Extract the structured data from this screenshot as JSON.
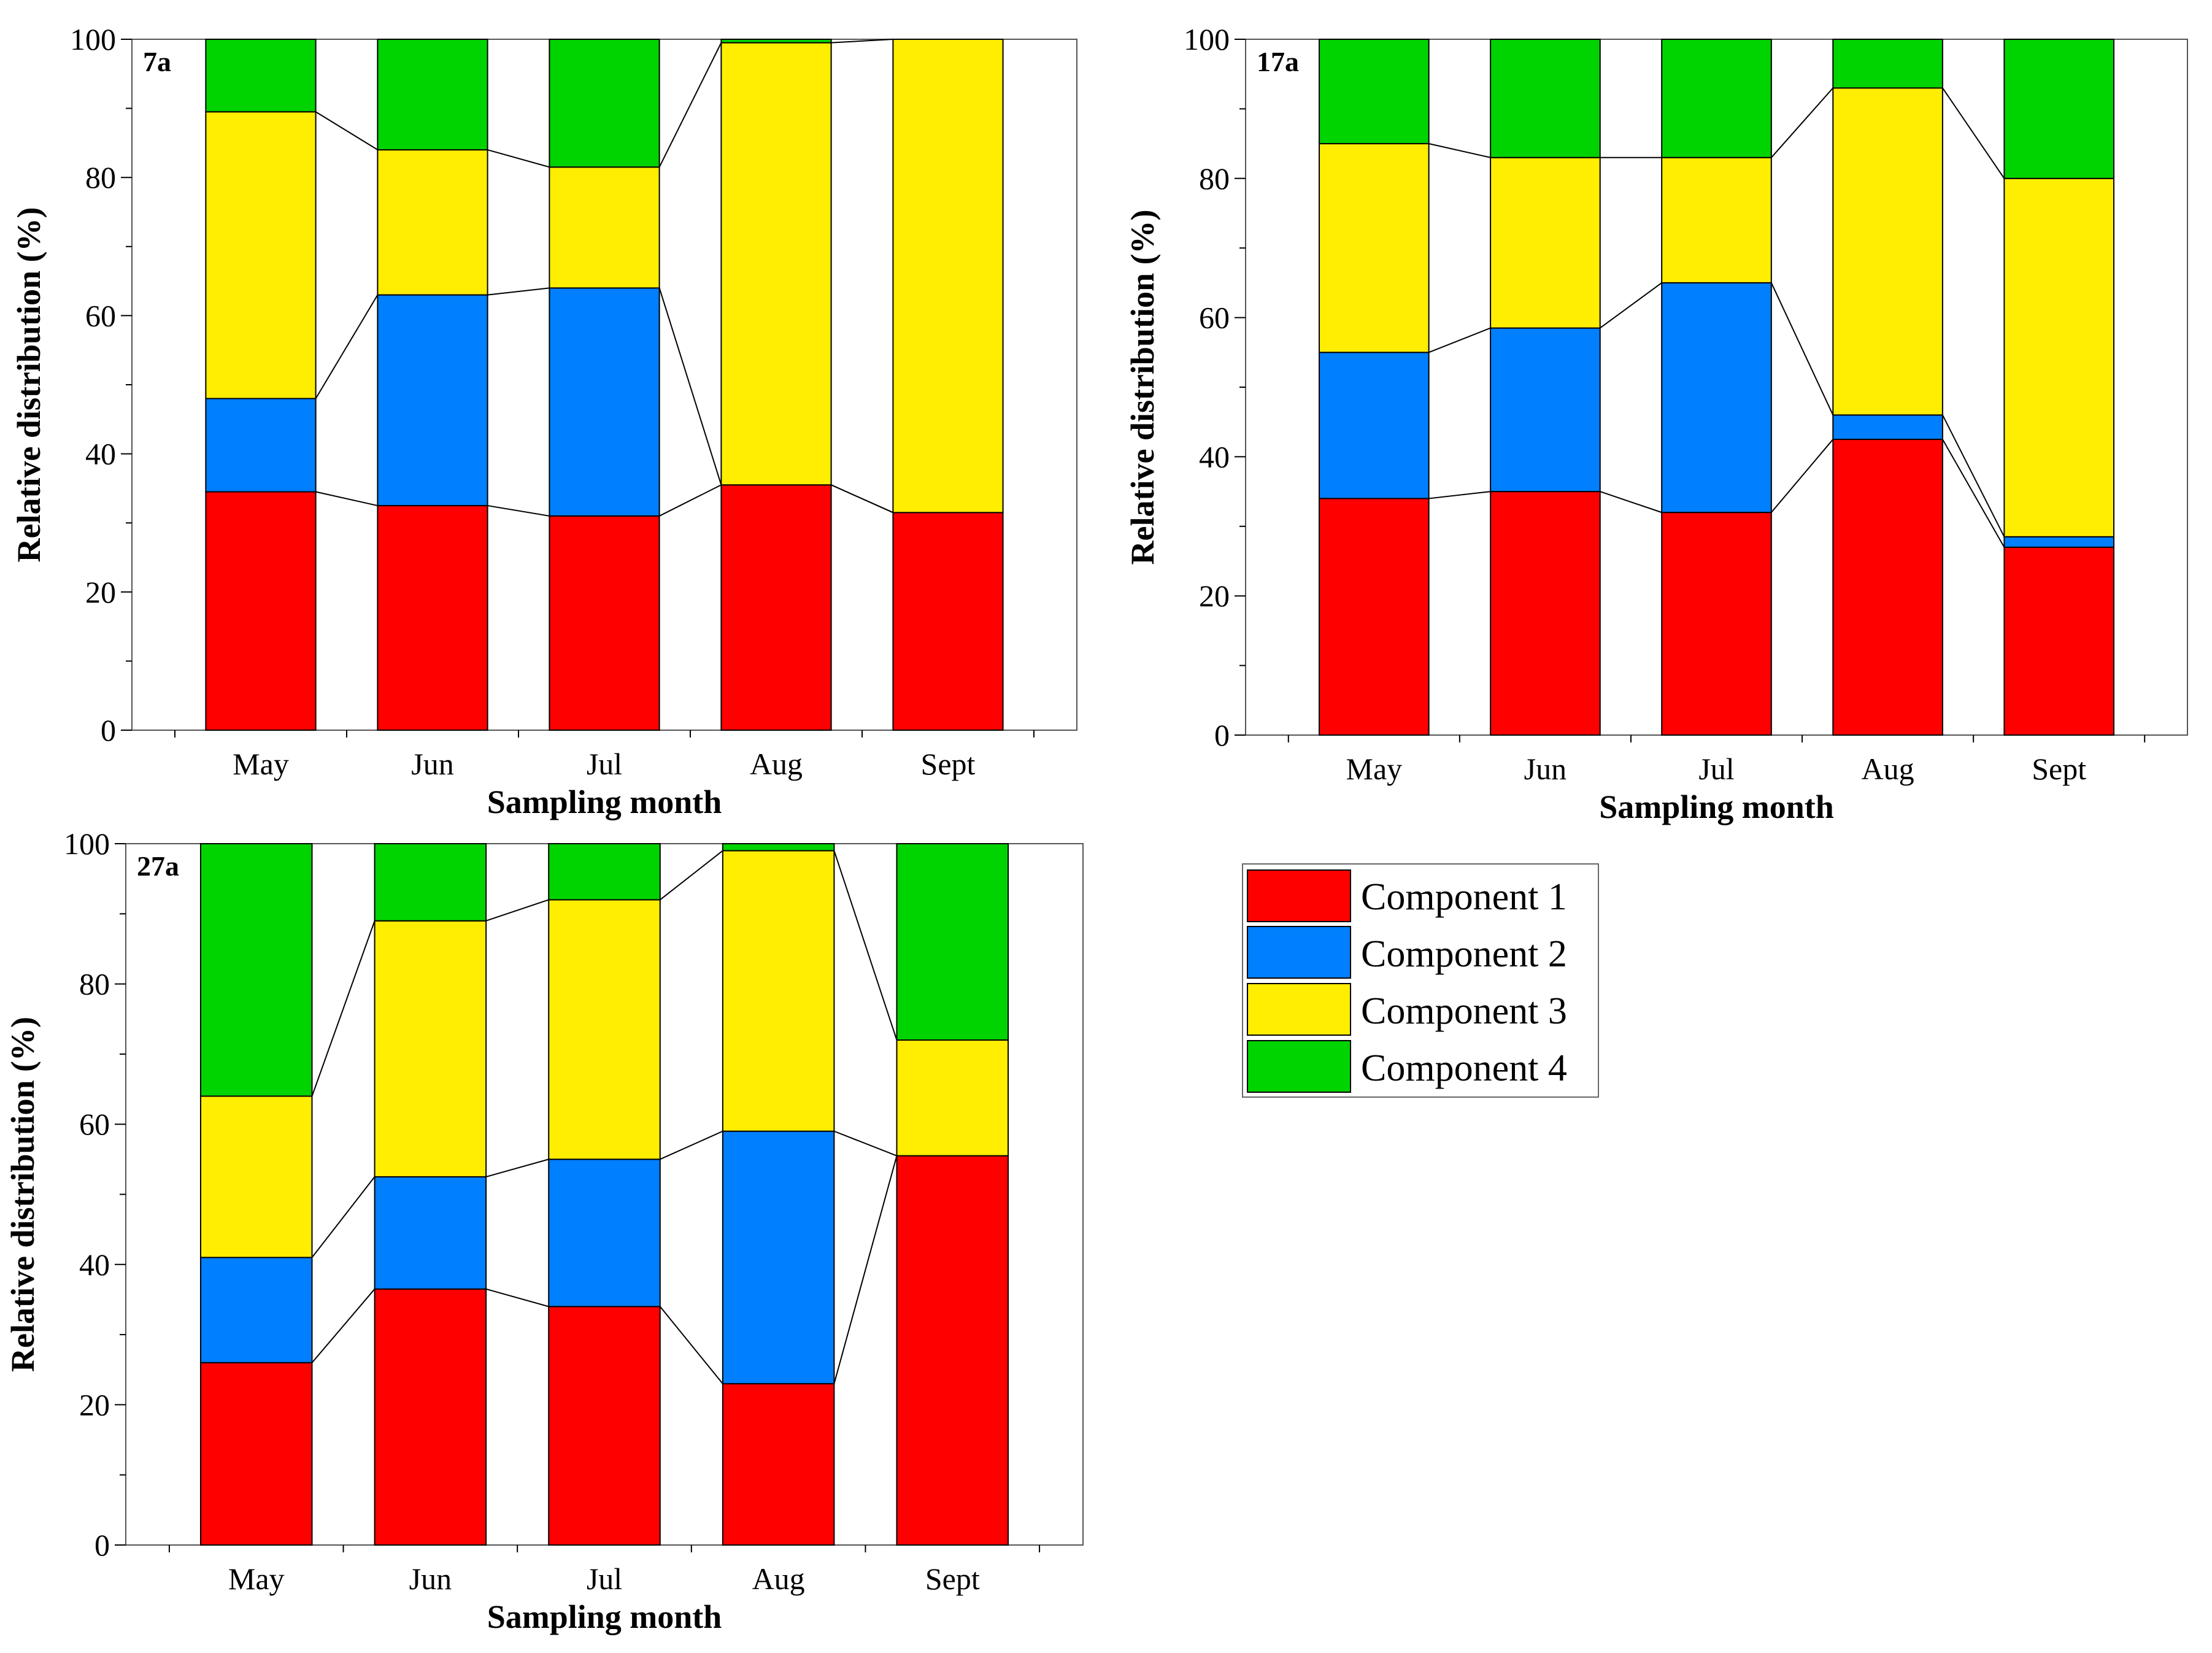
{
  "chart_data": [
    {
      "type": "bar",
      "stacked": true,
      "panel_label": "7a",
      "categories": [
        "May",
        "Jun",
        "Jul",
        "Aug",
        "Sept"
      ],
      "series": [
        {
          "name": "Component 1",
          "values": [
            34.5,
            32.5,
            31.0,
            35.5,
            31.5
          ]
        },
        {
          "name": "Component 2",
          "values": [
            13.5,
            30.5,
            33.0,
            0,
            0
          ]
        },
        {
          "name": "Component 3",
          "values": [
            41.5,
            21.0,
            17.5,
            64.0,
            68.5
          ]
        },
        {
          "name": "Component 4",
          "values": [
            10.5,
            16.0,
            18.5,
            0.5,
            0
          ]
        }
      ],
      "xlabel": "Sampling month",
      "ylabel": "Relative distribution (%)",
      "ylim": [
        0,
        100
      ],
      "yticks": [
        0,
        20,
        40,
        60,
        80,
        100
      ]
    },
    {
      "type": "bar",
      "stacked": true,
      "panel_label": "17a",
      "categories": [
        "May",
        "Jun",
        "Jul",
        "Aug",
        "Sept"
      ],
      "series": [
        {
          "name": "Component 1",
          "values": [
            34.0,
            35.0,
            32.0,
            42.5,
            27.0
          ]
        },
        {
          "name": "Component 2",
          "values": [
            21.0,
            23.5,
            33.0,
            3.5,
            1.5
          ]
        },
        {
          "name": "Component 3",
          "values": [
            30.0,
            24.5,
            18.0,
            47.0,
            51.5
          ]
        },
        {
          "name": "Component 4",
          "values": [
            15.0,
            17.0,
            17.0,
            7.0,
            20.0
          ]
        }
      ],
      "xlabel": "Sampling month",
      "ylabel": "Relative distribution (%)",
      "ylim": [
        0,
        100
      ],
      "yticks": [
        0,
        20,
        40,
        60,
        80,
        100
      ]
    },
    {
      "type": "bar",
      "stacked": true,
      "panel_label": "27a",
      "categories": [
        "May",
        "Jun",
        "Jul",
        "Aug",
        "Sept"
      ],
      "series": [
        {
          "name": "Component 1",
          "values": [
            26.0,
            36.5,
            34.0,
            23.0,
            55.5
          ]
        },
        {
          "name": "Component 2",
          "values": [
            15.0,
            16.0,
            21.0,
            36.0,
            0
          ]
        },
        {
          "name": "Component 3",
          "values": [
            23.0,
            36.5,
            37.0,
            40.0,
            16.5
          ]
        },
        {
          "name": "Component 4",
          "values": [
            36.0,
            11.0,
            8.0,
            1.0,
            28.0
          ]
        }
      ],
      "xlabel": "Sampling month",
      "ylabel": "Relative distribution (%)",
      "ylim": [
        0,
        100
      ],
      "yticks": [
        0,
        20,
        40,
        60,
        80,
        100
      ]
    }
  ],
  "legend": {
    "entries": [
      "Component 1",
      "Component 2",
      "Component 3",
      "Component 4"
    ]
  },
  "colors": {
    "component_1": "#ff0000",
    "component_2": "#007fff",
    "component_3": "#ffee00",
    "component_4": "#00d400"
  }
}
